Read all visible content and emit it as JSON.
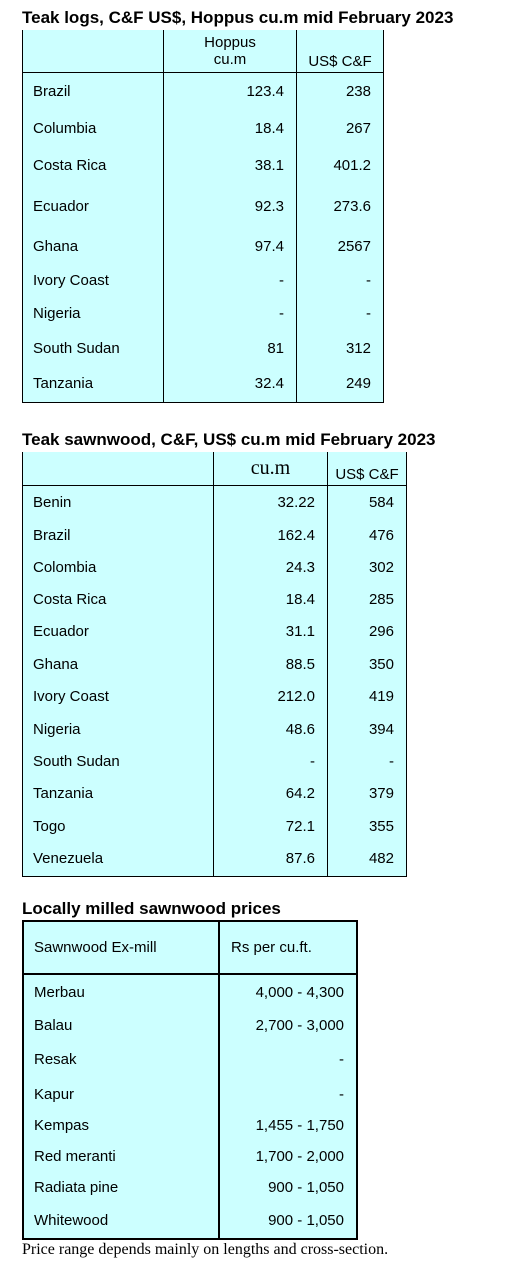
{
  "logs": {
    "title": "Teak logs, C&F US$, Hoppus cu.m mid February 2023",
    "headers": [
      "",
      "Hoppus\ncu.m",
      "US$ C&F"
    ],
    "rows": [
      [
        "Brazil",
        "123.4",
        "238"
      ],
      [
        "Columbia",
        "18.4",
        "267"
      ],
      [
        "Costa Rica",
        "38.1",
        "401.2"
      ],
      [
        "Ecuador",
        "92.3",
        "273.6"
      ],
      [
        "Ghana",
        "97.4",
        "2567"
      ],
      [
        "Ivory Coast",
        "-",
        "-"
      ],
      [
        "Nigeria",
        "-",
        "-"
      ],
      [
        "South Sudan",
        "81",
        "312"
      ],
      [
        "Tanzania",
        "32.4",
        "249"
      ]
    ]
  },
  "sawnwood": {
    "title": "Teak sawnwood, C&F, US$ cu.m mid February 2023",
    "headers": [
      "",
      "cu.m",
      "US$ C&F"
    ],
    "rows": [
      [
        "Benin",
        "32.22",
        "584"
      ],
      [
        "Brazil",
        "162.4",
        "476"
      ],
      [
        "Colombia",
        "24.3",
        "302"
      ],
      [
        "Costa Rica",
        "18.4",
        "285"
      ],
      [
        "Ecuador",
        "31.1",
        "296"
      ],
      [
        "Ghana",
        "88.5",
        "350"
      ],
      [
        "Ivory Coast",
        "212.0",
        "419"
      ],
      [
        "Nigeria",
        "48.6",
        "394"
      ],
      [
        "South Sudan",
        "-",
        "-"
      ],
      [
        "Tanzania",
        "64.2",
        "379"
      ],
      [
        "Togo",
        "72.1",
        "355"
      ],
      [
        "Venezuela",
        "87.6",
        "482"
      ]
    ]
  },
  "local": {
    "title": "Locally milled sawnwood prices",
    "headers": [
      "Sawnwood Ex-mill",
      "Rs per cu.ft."
    ],
    "rows": [
      [
        "Merbau",
        "4,000 - 4,300"
      ],
      [
        "Balau",
        "2,700 - 3,000"
      ],
      [
        "Resak",
        "-"
      ],
      [
        "Kapur",
        "-"
      ],
      [
        "Kempas",
        "1,455  - 1,750"
      ],
      [
        "Red meranti",
        "1,700 -  2,000"
      ],
      [
        "Radiata pine",
        "900 - 1,050"
      ],
      [
        "Whitewood",
        "900 - 1,050"
      ]
    ],
    "note": "Price range depends mainly on lengths and cross-section."
  }
}
